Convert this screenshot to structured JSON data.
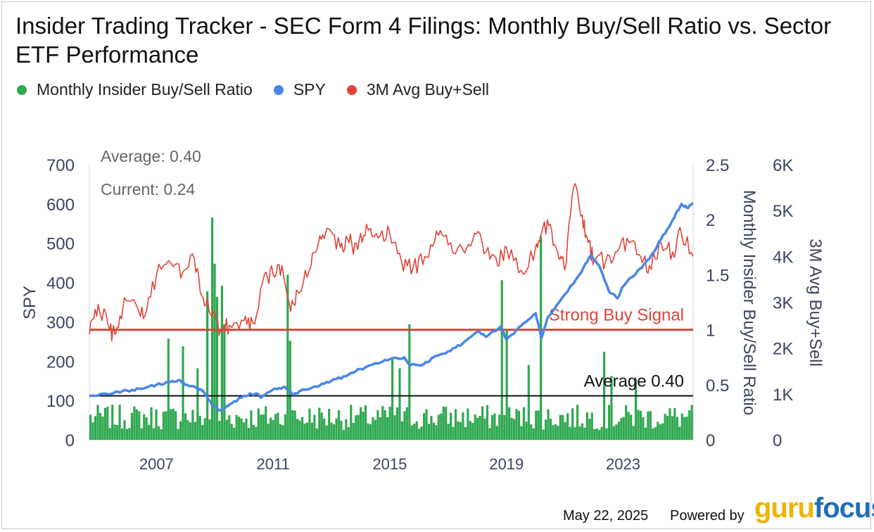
{
  "header": {
    "title": "Insider Trading Tracker - SEC Form 4 Filings: Monthly Buy/Sell Ratio vs. Sector ETF Performance"
  },
  "legend": [
    {
      "label": "Monthly Insider Buy/Sell Ratio",
      "color": "#2fa84f"
    },
    {
      "label": "SPY",
      "color": "#4a86e8"
    },
    {
      "label": "3M Avg Buy+Sell",
      "color": "#e0443a"
    }
  ],
  "stats": {
    "average": "Average: 0.40",
    "current": "Current: 0.24"
  },
  "footer": {
    "date": "May 22, 2025",
    "powered_by": "Powered by",
    "logo_part1": "guru",
    "logo_part2": "focus"
  },
  "chart_data": {
    "type": "bar",
    "x_range": [
      2004.7,
      2025.4
    ],
    "x_ticks": [
      2007,
      2011,
      2015,
      2019,
      2023
    ],
    "axes": {
      "left": {
        "label": "SPY",
        "range": [
          0,
          700
        ],
        "ticks": [
          0,
          100,
          200,
          300,
          400,
          500,
          600,
          700
        ]
      },
      "right_inner": {
        "label": "Monthly Insider Buy/Sell Ratio",
        "range": [
          0,
          2.5
        ],
        "ticks": [
          0,
          0.5,
          1,
          1.5,
          2,
          2.5
        ],
        "tick_labels": [
          "0",
          "0.5",
          "1",
          "1.5",
          "2",
          "2.5"
        ]
      },
      "right_outer": {
        "label": "3M Avg Buy+Sell",
        "range": [
          0,
          6000
        ],
        "ticks": [
          0,
          1000,
          2000,
          3000,
          4000,
          5000,
          6000
        ],
        "tick_labels": [
          "0",
          "1K",
          "2K",
          "3K",
          "4K",
          "5K",
          "6K"
        ]
      }
    },
    "reference_lines": [
      {
        "label": "Strong Buy Signal",
        "value": 1.0,
        "axis": "right_inner",
        "color": "#e0443a"
      },
      {
        "label": "Average 0.40",
        "value": 0.4,
        "axis": "right_inner",
        "color": "#111111"
      }
    ],
    "series": [
      {
        "name": "Monthly Insider Buy/Sell Ratio",
        "type": "bar",
        "axis": "right_inner",
        "color": "#2fa84f",
        "note_base_level": 0.2,
        "spikes": [
          {
            "x": 2007.4,
            "value": 0.92
          },
          {
            "x": 2007.9,
            "value": 0.85
          },
          {
            "x": 2008.4,
            "value": 0.65
          },
          {
            "x": 2008.75,
            "value": 1.35
          },
          {
            "x": 2008.85,
            "value": 2.02
          },
          {
            "x": 2008.95,
            "value": 1.6
          },
          {
            "x": 2009.05,
            "value": 1.3
          },
          {
            "x": 2009.2,
            "value": 1.4
          },
          {
            "x": 2009.35,
            "value": 1.05
          },
          {
            "x": 2011.5,
            "value": 1.5
          },
          {
            "x": 2011.6,
            "value": 0.9
          },
          {
            "x": 2015.1,
            "value": 0.75
          },
          {
            "x": 2015.35,
            "value": 0.65
          },
          {
            "x": 2015.7,
            "value": 1.05
          },
          {
            "x": 2018.9,
            "value": 1.45
          },
          {
            "x": 2019.05,
            "value": 1.0
          },
          {
            "x": 2019.8,
            "value": 0.68
          },
          {
            "x": 2020.2,
            "value": 1.85
          },
          {
            "x": 2022.4,
            "value": 0.8
          },
          {
            "x": 2022.6,
            "value": 0.58
          },
          {
            "x": 2023.5,
            "value": 0.55
          }
        ]
      },
      {
        "name": "SPY",
        "type": "line",
        "axis": "left",
        "color": "#4a86e8",
        "points": [
          [
            2004.7,
            112
          ],
          [
            2005.5,
            118
          ],
          [
            2006.0,
            125
          ],
          [
            2006.5,
            130
          ],
          [
            2007.0,
            140
          ],
          [
            2007.5,
            148
          ],
          [
            2007.8,
            152
          ],
          [
            2008.0,
            140
          ],
          [
            2008.4,
            130
          ],
          [
            2008.6,
            125
          ],
          [
            2008.9,
            90
          ],
          [
            2009.2,
            75
          ],
          [
            2009.5,
            90
          ],
          [
            2010.0,
            112
          ],
          [
            2010.4,
            118
          ],
          [
            2010.6,
            108
          ],
          [
            2011.0,
            128
          ],
          [
            2011.4,
            135
          ],
          [
            2011.7,
            115
          ],
          [
            2012.0,
            128
          ],
          [
            2012.5,
            135
          ],
          [
            2013.0,
            150
          ],
          [
            2013.5,
            162
          ],
          [
            2014.0,
            180
          ],
          [
            2014.5,
            195
          ],
          [
            2015.0,
            205
          ],
          [
            2015.5,
            210
          ],
          [
            2015.7,
            190
          ],
          [
            2016.1,
            190
          ],
          [
            2016.5,
            210
          ],
          [
            2017.0,
            225
          ],
          [
            2017.5,
            245
          ],
          [
            2018.0,
            275
          ],
          [
            2018.3,
            262
          ],
          [
            2018.8,
            288
          ],
          [
            2019.0,
            255
          ],
          [
            2019.5,
            290
          ],
          [
            2020.0,
            322
          ],
          [
            2020.2,
            260
          ],
          [
            2020.4,
            310
          ],
          [
            2020.9,
            360
          ],
          [
            2021.5,
            420
          ],
          [
            2021.9,
            470
          ],
          [
            2022.2,
            440
          ],
          [
            2022.5,
            380
          ],
          [
            2022.8,
            360
          ],
          [
            2023.0,
            390
          ],
          [
            2023.5,
            430
          ],
          [
            2023.9,
            460
          ],
          [
            2024.3,
            510
          ],
          [
            2024.7,
            560
          ],
          [
            2025.0,
            600
          ],
          [
            2025.2,
            590
          ],
          [
            2025.4,
            600
          ]
        ]
      },
      {
        "name": "3M Avg Buy+Sell",
        "type": "line",
        "axis": "right_outer",
        "color": "#e0443a",
        "points": [
          [
            2004.7,
            2300
          ],
          [
            2005.0,
            2950
          ],
          [
            2005.4,
            2400
          ],
          [
            2005.6,
            2300
          ],
          [
            2005.9,
            3100
          ],
          [
            2006.3,
            2950
          ],
          [
            2006.6,
            2700
          ],
          [
            2007.0,
            3600
          ],
          [
            2007.5,
            3850
          ],
          [
            2007.9,
            3650
          ],
          [
            2008.3,
            3950
          ],
          [
            2008.6,
            3100
          ],
          [
            2008.9,
            2700
          ],
          [
            2009.2,
            2400
          ],
          [
            2009.5,
            2500
          ],
          [
            2010.0,
            2600
          ],
          [
            2010.3,
            2550
          ],
          [
            2010.7,
            3600
          ],
          [
            2011.0,
            3600
          ],
          [
            2011.3,
            3800
          ],
          [
            2011.6,
            2800
          ],
          [
            2011.9,
            3200
          ],
          [
            2012.3,
            3800
          ],
          [
            2012.6,
            4450
          ],
          [
            2012.9,
            4600
          ],
          [
            2013.3,
            4200
          ],
          [
            2013.6,
            4300
          ],
          [
            2013.9,
            4150
          ],
          [
            2014.2,
            4700
          ],
          [
            2014.6,
            4400
          ],
          [
            2015.0,
            4500
          ],
          [
            2015.4,
            3900
          ],
          [
            2015.8,
            3750
          ],
          [
            2016.2,
            4000
          ],
          [
            2016.6,
            4550
          ],
          [
            2017.0,
            4250
          ],
          [
            2017.5,
            4150
          ],
          [
            2017.9,
            4500
          ],
          [
            2018.3,
            4100
          ],
          [
            2018.7,
            3800
          ],
          [
            2019.0,
            4200
          ],
          [
            2019.5,
            3700
          ],
          [
            2020.0,
            4200
          ],
          [
            2020.2,
            4500
          ],
          [
            2020.5,
            4700
          ],
          [
            2020.8,
            3950
          ],
          [
            2021.0,
            3700
          ],
          [
            2021.3,
            5500
          ],
          [
            2021.6,
            4900
          ],
          [
            2021.8,
            4300
          ],
          [
            2022.0,
            3900
          ],
          [
            2022.4,
            3900
          ],
          [
            2022.8,
            4100
          ],
          [
            2023.2,
            4300
          ],
          [
            2023.6,
            4000
          ],
          [
            2023.9,
            3800
          ],
          [
            2024.3,
            4300
          ],
          [
            2024.7,
            4100
          ],
          [
            2025.0,
            4500
          ],
          [
            2025.4,
            4000
          ]
        ]
      }
    ]
  }
}
